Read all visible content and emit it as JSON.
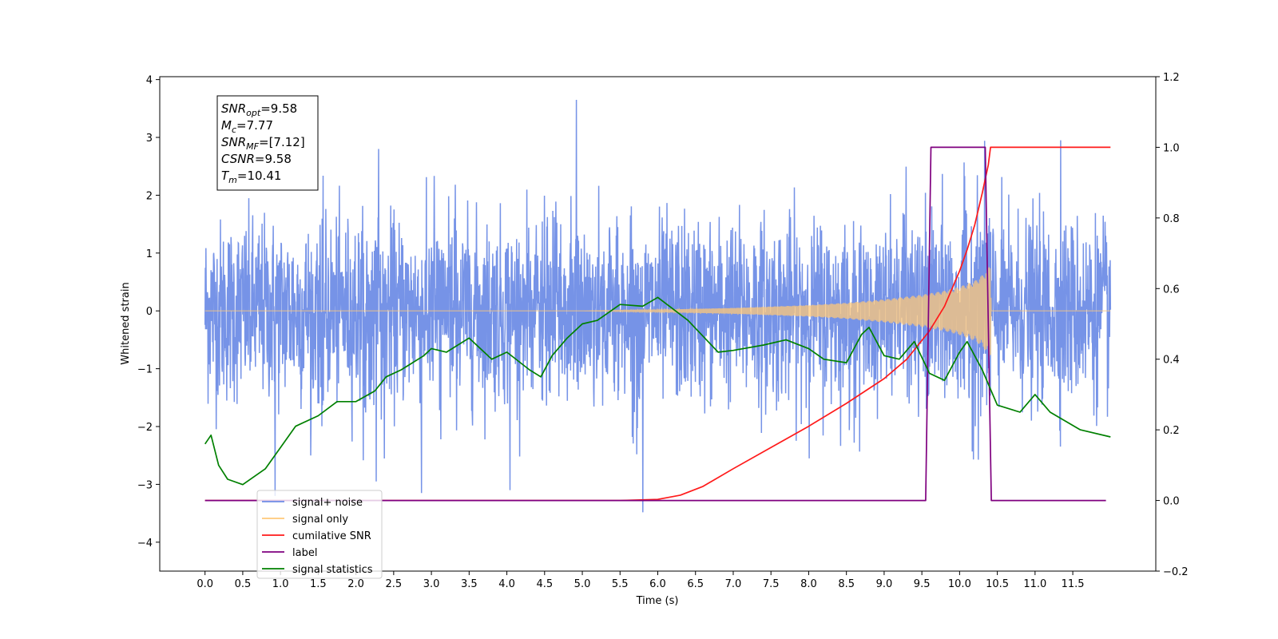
{
  "chart_data": {
    "type": "line",
    "xlabel": "Time (s)",
    "ylabel": "Whitened strain",
    "xlim": [
      -0.6,
      12.6
    ],
    "ylim": [
      -4.5,
      4.05
    ],
    "y2lim": [
      -0.2,
      1.2
    ],
    "x_ticks": [
      0.0,
      0.5,
      1.0,
      1.5,
      2.0,
      2.5,
      3.0,
      3.5,
      4.0,
      4.5,
      5.0,
      5.5,
      6.0,
      6.5,
      7.0,
      7.5,
      8.0,
      8.5,
      9.0,
      9.5,
      10.0,
      10.5,
      11.0,
      11.5
    ],
    "x_tick_labels": [
      "0.0",
      "0.5",
      "1.0",
      "1.5",
      "2.0",
      "2.5",
      "3.0",
      "3.5",
      "4.0",
      "4.5",
      "5.0",
      "5.5",
      "6.0",
      "6.5",
      "7.0",
      "7.5",
      "8.0",
      "8.5",
      "9.0",
      "9.5",
      "10.0",
      "10.5",
      "11.0",
      "11.5"
    ],
    "y_ticks": [
      4,
      3,
      2,
      1,
      0,
      -1,
      -2,
      -3,
      -4
    ],
    "y_tick_labels": [
      "4",
      "3",
      "2",
      "1",
      "0",
      "−1",
      "−2",
      "−3",
      "−4"
    ],
    "y2_ticks": [
      1.2,
      1.0,
      0.8,
      0.6,
      0.4,
      0.2,
      0.0,
      -0.2
    ],
    "y2_tick_labels": [
      "1.2",
      "1.0",
      "0.8",
      "0.6",
      "0.4",
      "0.2",
      "0.0",
      "−0.2"
    ],
    "grid": false,
    "legend_position": "bottom-left",
    "annotation": [
      {
        "base": "SNR",
        "sub": "opt",
        "value": "=9.58"
      },
      {
        "base": "M",
        "sub": "c",
        "value": "=7.77"
      },
      {
        "base": "SNR",
        "sub": "MF",
        "value": "=[7.12]"
      },
      {
        "base": "CSNR",
        "sub": "",
        "value": "=9.58"
      },
      {
        "base": "T",
        "sub": "m",
        "value": "=10.41"
      }
    ],
    "series": [
      {
        "name": "signal+ noise",
        "axis": "left",
        "color": "#6f8de6",
        "x_range": [
          0.0,
          12.0
        ],
        "envelope": 1.3,
        "peaks": [
          [
            4.92,
            3.65
          ],
          [
            11.34,
            2.95
          ],
          [
            2.3,
            2.8
          ],
          [
            0.93,
            -3.2
          ],
          [
            2.87,
            -3.15
          ],
          [
            4.04,
            -3.1
          ],
          [
            5.8,
            -3.5
          ],
          [
            2.27,
            -2.95
          ]
        ]
      },
      {
        "name": "signal only",
        "axis": "left",
        "color": "#ffc87a",
        "x": [
          0,
          5.0,
          6.0,
          7.0,
          8.0,
          8.5,
          9.0,
          9.5,
          9.8,
          10.0,
          10.2,
          10.3,
          10.38,
          10.41,
          10.42,
          12.0
        ],
        "amplitude": [
          0,
          0,
          0.02,
          0.05,
          0.1,
          0.14,
          0.2,
          0.28,
          0.35,
          0.42,
          0.52,
          0.62,
          0.75,
          0.85,
          0,
          0
        ]
      },
      {
        "name": "cumilative SNR",
        "axis": "right",
        "color": "#ff1a1a",
        "x": [
          0,
          5.5,
          6.0,
          6.3,
          6.6,
          7.0,
          7.5,
          8.0,
          8.5,
          9.0,
          9.3,
          9.6,
          9.8,
          10.0,
          10.1,
          10.2,
          10.3,
          10.38,
          10.41,
          12.0
        ],
        "values": [
          0,
          0,
          0.003,
          0.015,
          0.04,
          0.09,
          0.15,
          0.21,
          0.275,
          0.345,
          0.4,
          0.48,
          0.55,
          0.65,
          0.71,
          0.78,
          0.87,
          0.95,
          1.0,
          1.0
        ]
      },
      {
        "name": "label",
        "axis": "right",
        "color": "#7f007f",
        "x": [
          0,
          9.55,
          9.62,
          10.34,
          10.42,
          11.94
        ],
        "values": [
          0,
          0,
          1,
          1,
          0,
          0
        ]
      },
      {
        "name": "signal statistics",
        "axis": "right",
        "color": "#008000",
        "x": [
          0.0,
          0.08,
          0.18,
          0.3,
          0.5,
          0.8,
          1.0,
          1.2,
          1.5,
          1.75,
          2.0,
          2.25,
          2.4,
          2.6,
          2.9,
          3.0,
          3.2,
          3.5,
          3.8,
          4.0,
          4.3,
          4.45,
          4.6,
          4.8,
          5.0,
          5.2,
          5.5,
          5.8,
          6.0,
          6.4,
          6.8,
          7.0,
          7.4,
          7.7,
          8.0,
          8.2,
          8.5,
          8.7,
          8.8,
          9.0,
          9.2,
          9.4,
          9.6,
          9.8,
          10.0,
          10.1,
          10.3,
          10.5,
          10.8,
          11.0,
          11.2,
          11.6,
          12.0
        ],
        "values": [
          0.16,
          0.185,
          0.1,
          0.06,
          0.045,
          0.09,
          0.15,
          0.21,
          0.24,
          0.28,
          0.28,
          0.31,
          0.35,
          0.37,
          0.41,
          0.43,
          0.42,
          0.46,
          0.4,
          0.42,
          0.37,
          0.35,
          0.41,
          0.46,
          0.5,
          0.51,
          0.555,
          0.55,
          0.575,
          0.51,
          0.42,
          0.425,
          0.44,
          0.455,
          0.43,
          0.4,
          0.39,
          0.47,
          0.49,
          0.41,
          0.4,
          0.45,
          0.36,
          0.34,
          0.42,
          0.45,
          0.37,
          0.27,
          0.25,
          0.3,
          0.25,
          0.2,
          0.18
        ]
      }
    ]
  }
}
